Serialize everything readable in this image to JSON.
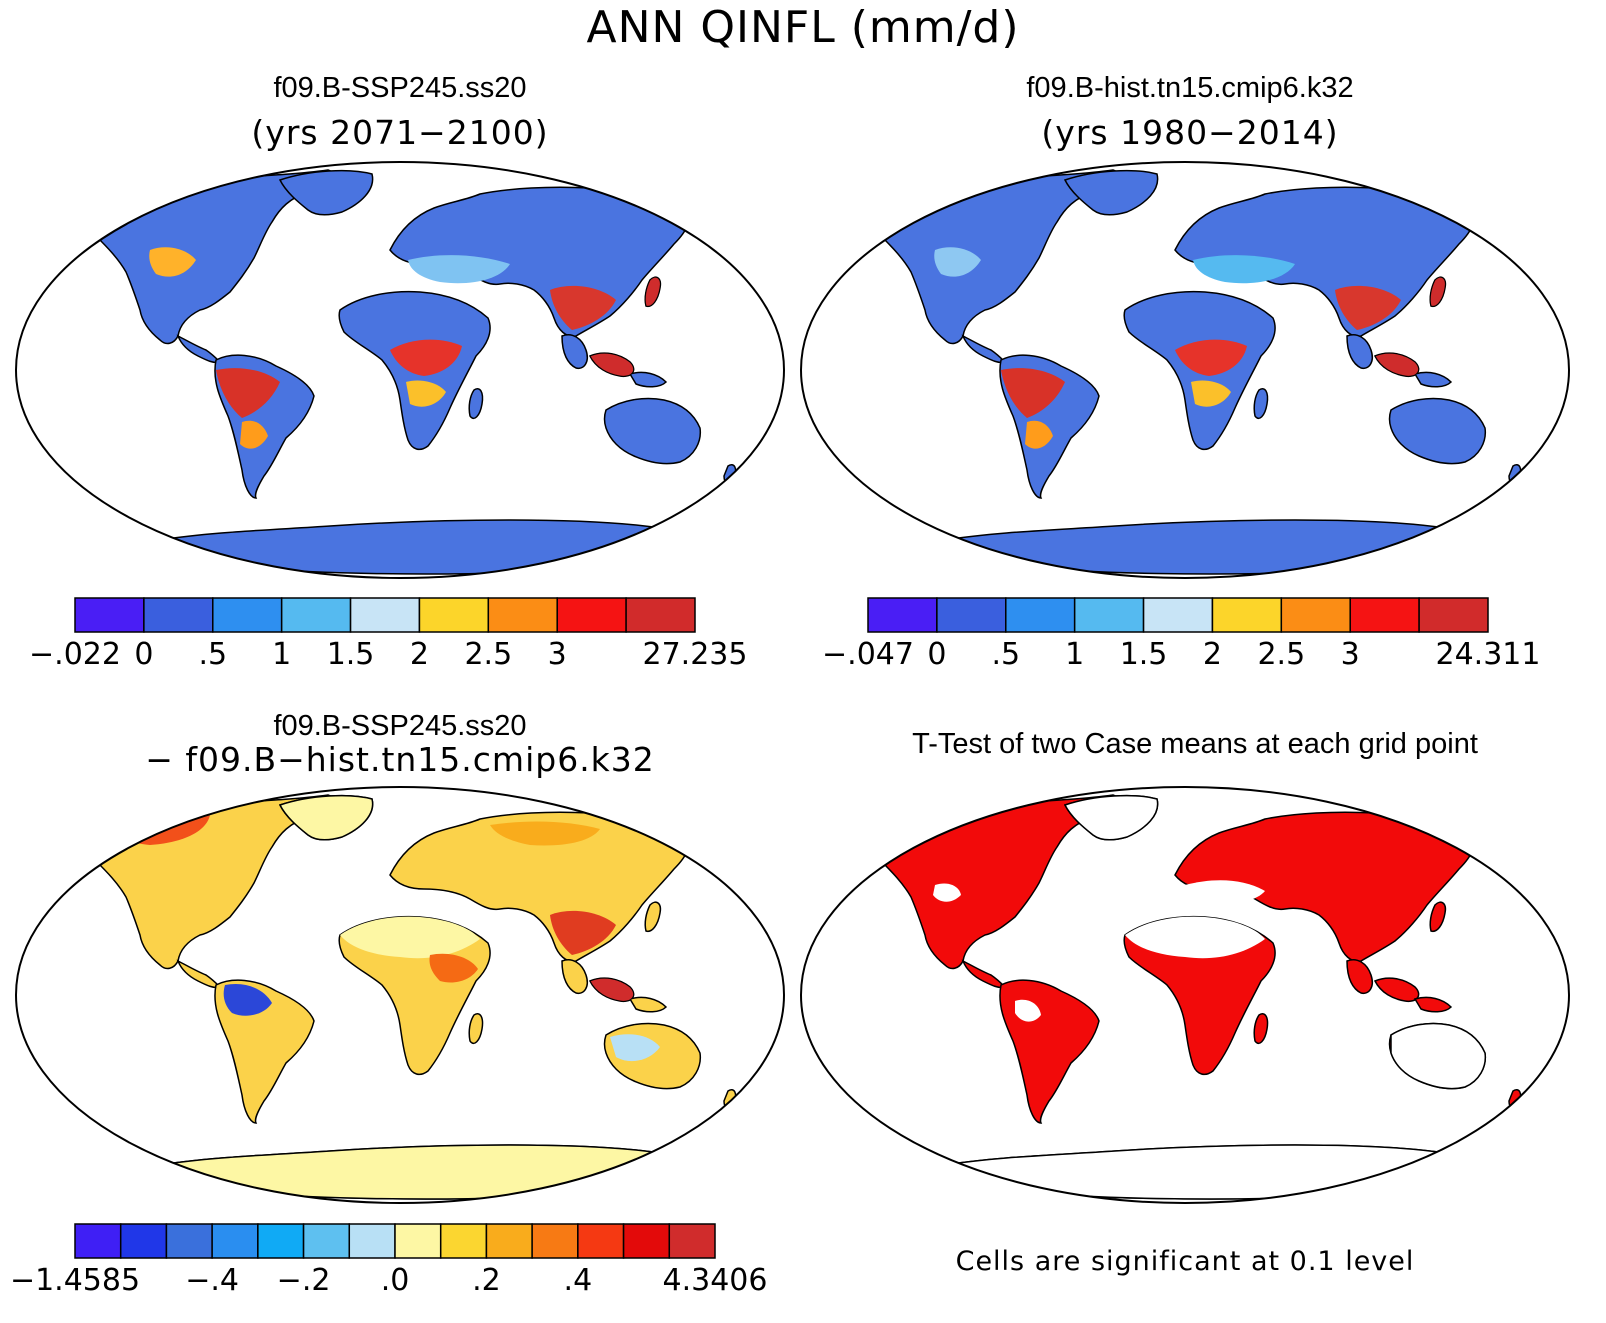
{
  "figure_title": "ANN QINFL (mm/d)",
  "panels": {
    "future": {
      "title": "f09.B-SSP245.ss20",
      "subtitle": "(yrs 2071−2100)",
      "colorbar": {
        "colors": [
          "#4a1ef5",
          "#3a5fde",
          "#2e8ff0",
          "#55baf0",
          "#c8e4f6",
          "#fcd52a",
          "#fb8d15",
          "#f51313",
          "#d12b2b"
        ],
        "ticks": [
          "−.022",
          "0",
          ".5",
          "1",
          "1.5",
          "2",
          "2.5",
          "3",
          "27.235"
        ]
      }
    },
    "historical": {
      "title": "f09.B-hist.tn15.cmip6.k32",
      "subtitle": "(yrs 1980−2014)",
      "colorbar": {
        "colors": [
          "#4a1ef5",
          "#3a5fde",
          "#2e8ff0",
          "#55baf0",
          "#c8e4f6",
          "#fcd52a",
          "#fb8d15",
          "#f51313",
          "#d12b2b"
        ],
        "ticks": [
          "−.047",
          "0",
          ".5",
          "1",
          "1.5",
          "2",
          "2.5",
          "3",
          "24.311"
        ]
      }
    },
    "difference": {
      "title": "f09.B-SSP245.ss20",
      "subtitle": "− f09.B−hist.tn15.cmip6.k32",
      "colorbar": {
        "colors": [
          "#3f1ff5",
          "#2037e8",
          "#3a70dc",
          "#2a8ef0",
          "#10aaf5",
          "#5ec0f0",
          "#b8e0f5",
          "#fdf7a4",
          "#fbd630",
          "#f9ac1c",
          "#f77a14",
          "#f53912",
          "#e30a0a",
          "#d02c2c"
        ],
        "ticks": [
          "−1.4585",
          "−.4",
          "−.2",
          ".0",
          ".2",
          ".4",
          "4.3406"
        ]
      }
    },
    "ttest": {
      "title": "T-Test of two Case means at each grid point",
      "note": "Cells are significant at 0.1 level",
      "significant_color": "#f20a0a"
    }
  }
}
